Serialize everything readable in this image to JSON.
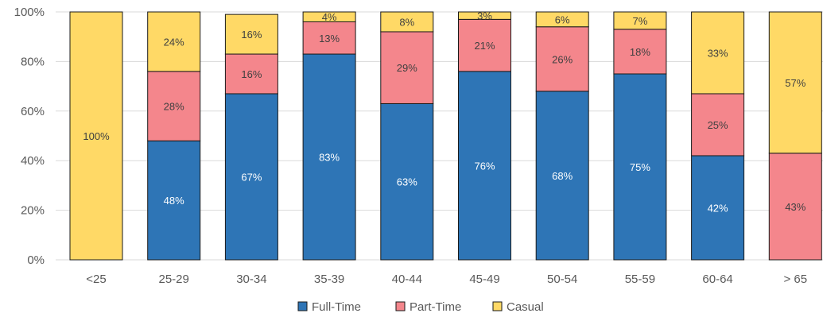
{
  "chart_data": {
    "type": "bar",
    "stacked": true,
    "categories": [
      "<25",
      "25-29",
      "30-34",
      "35-39",
      "40-44",
      "45-49",
      "50-54",
      "55-59",
      "60-64",
      "> 65"
    ],
    "series": [
      {
        "name": "Full-Time",
        "color": "#2e75b6",
        "label_color": "#ffffff",
        "values": [
          0,
          48,
          67,
          83,
          63,
          76,
          68,
          75,
          42,
          0
        ],
        "labels": [
          "",
          "48%",
          "67%",
          "83%",
          "63%",
          "76%",
          "68%",
          "75%",
          "42%",
          ""
        ]
      },
      {
        "name": "Part-Time",
        "color": "#f4868c",
        "label_color": "#404040",
        "values": [
          0,
          28,
          16,
          13,
          29,
          21,
          26,
          18,
          25,
          43
        ],
        "labels": [
          "",
          "28%",
          "16%",
          "13%",
          "29%",
          "21%",
          "26%",
          "18%",
          "25%",
          "43%"
        ]
      },
      {
        "name": "Casual",
        "color": "#ffd966",
        "label_color": "#404040",
        "values": [
          100,
          24,
          16,
          4,
          8,
          3,
          6,
          7,
          33,
          57
        ],
        "labels": [
          "100%",
          "24%",
          "16%",
          "4%",
          "8%",
          "3%",
          "6%",
          "7%",
          "33%",
          "57%"
        ]
      }
    ],
    "y_ticks": [
      "0%",
      "20%",
      "40%",
      "60%",
      "80%",
      "100%"
    ],
    "ylim": [
      0,
      100
    ],
    "grid": true,
    "legend_position": "bottom"
  }
}
